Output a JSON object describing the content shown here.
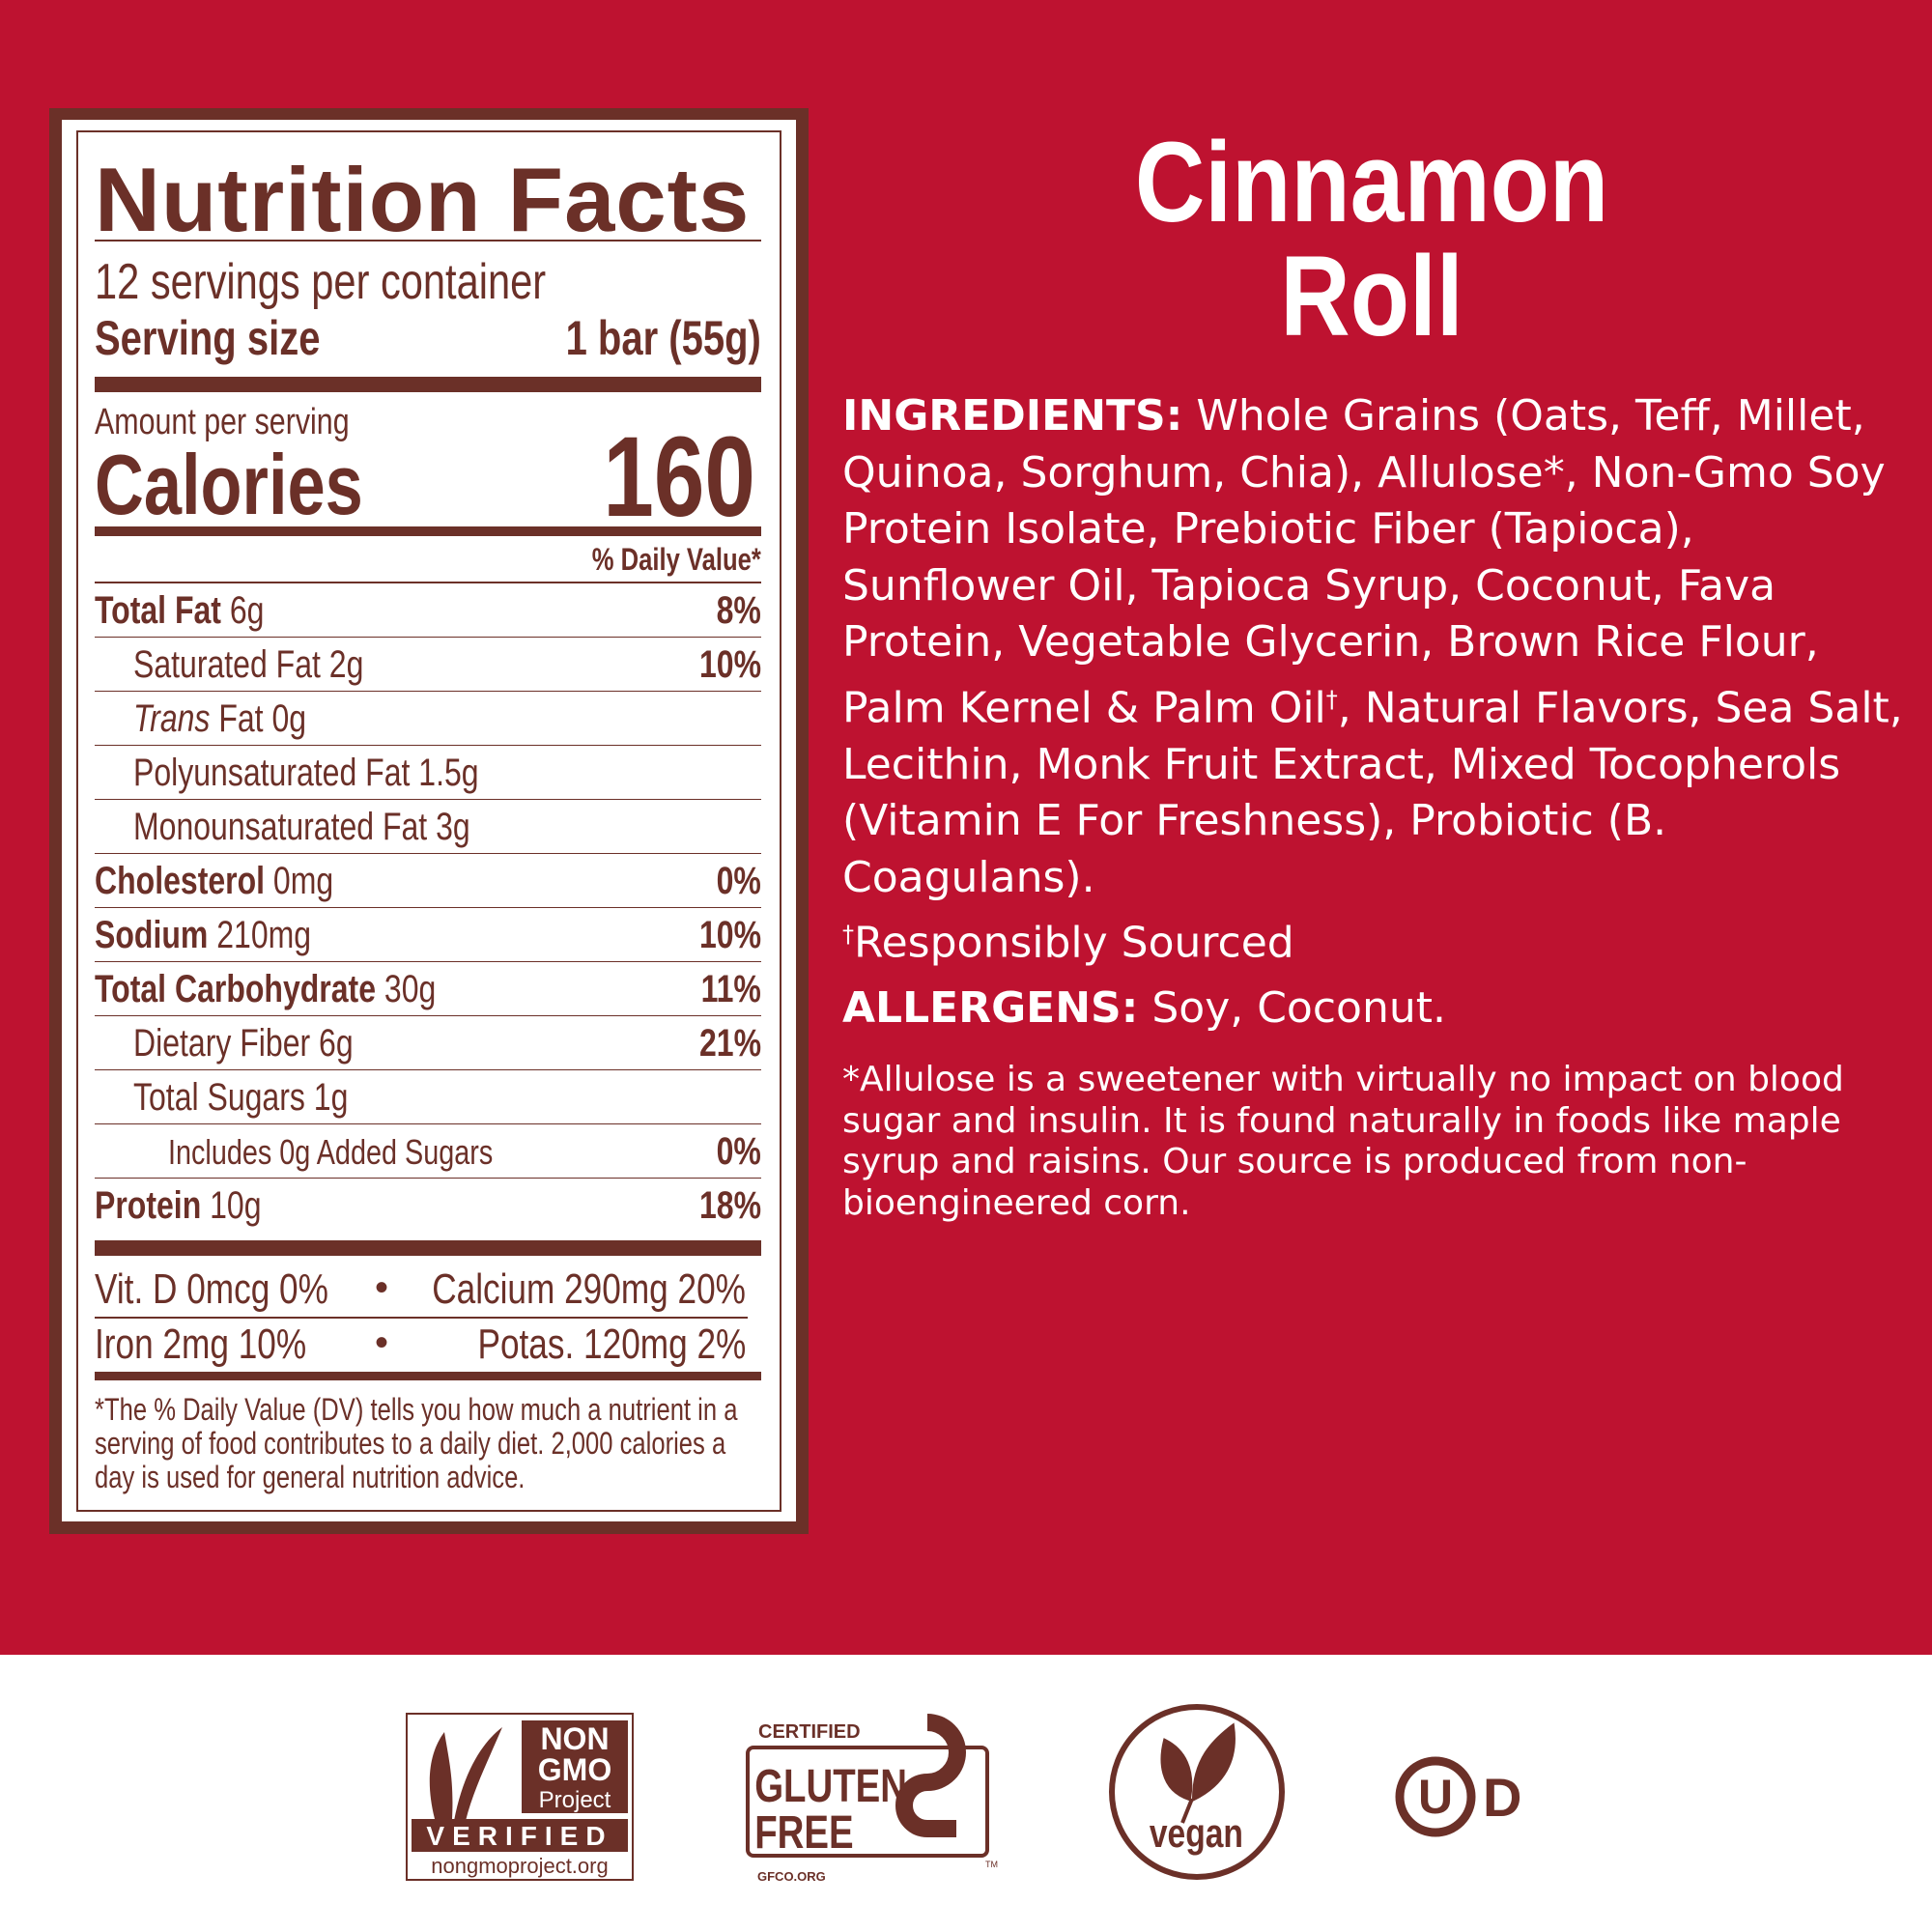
{
  "product_title": "Cinnamon Roll",
  "colors": {
    "background": "#BE1230",
    "label_brown": "#6B3028",
    "footer": "#FFFFFF"
  },
  "nutrition": {
    "heading": "Nutrition Facts",
    "servings_per_container": "12 servings per container",
    "serving_size_label": "Serving size",
    "serving_size_value": "1 bar (55g)",
    "amount_per_serving": "Amount per serving",
    "calories_label": "Calories",
    "calories_value": "160",
    "dv_header": "% Daily Value*",
    "rows": [
      {
        "name": "Total Fat",
        "amount": " 6g",
        "dv": "8%"
      },
      {
        "name": "Saturated Fat 2g",
        "amount": "",
        "dv": "10%"
      },
      {
        "name_italic": "Trans",
        "name": " Fat 0g",
        "dv": ""
      },
      {
        "name": "Polyunsaturated Fat 1.5g",
        "dv": ""
      },
      {
        "name": "Monounsaturated Fat 3g",
        "dv": ""
      },
      {
        "name": "Cholesterol",
        "amount": " 0mg",
        "dv": "0%"
      },
      {
        "name": "Sodium",
        "amount": " 210mg",
        "dv": "10%"
      },
      {
        "name": "Total Carbohydrate",
        "amount": " 30g",
        "dv": "11%"
      },
      {
        "name": "Dietary Fiber 6g",
        "dv": "21%"
      },
      {
        "name": "Total Sugars 1g",
        "dv": ""
      },
      {
        "name": "Includes 0g Added Sugars",
        "dv": "0%"
      },
      {
        "name": "Protein",
        "amount": " 10g",
        "dv": "18%"
      }
    ],
    "vitamins": {
      "vit_d": "Vit. D 0mcg 0%",
      "calcium": "Calcium 290mg 20%",
      "iron": "Iron 2mg 10%",
      "potassium": "Potas. 120mg 2%",
      "bullet": "•"
    },
    "footnote": "*The % Daily Value (DV) tells you how much a nutrient in a serving of food contributes to a daily diet. 2,000 calories a day is used for general nutrition advice."
  },
  "ingredients": {
    "label": "INGREDIENTS:",
    "text": " Whole Grains (Oats, Teff, Millet, Quinoa, Sorghum, Chia), Allulose*, Non-Gmo Soy Protein Isolate, Prebiotic Fiber (Tapioca), Sunflower Oil, Tapioca Syrup, Coconut, Fava Protein, Vegetable Glycerin, Brown Rice Flour, Palm Kernel & Palm Oil",
    "dagger": "†",
    "text2": ", Natural Flavors, Sea Salt, Lecithin, Monk Fruit Extract, Mixed Tocopherols (Vitamin E For Freshness), Probiotic (B. Coagulans).",
    "responsibly": "Responsibly Sourced"
  },
  "allergens": {
    "label": "ALLERGENS:",
    "text": " Soy, Coconut."
  },
  "allulose_note": "*Allulose is a sweetener with virtually no impact on blood sugar and insulin. It is found naturally in foods like maple syrup and raisins. Our source is produced from non-bioengineered corn.",
  "certifications": {
    "non_gmo": {
      "line1": "NON",
      "line2": "GMO",
      "line3": "Project",
      "verified": "VERIFIED",
      "url": "nongmoproject.org"
    },
    "gluten_free": {
      "certified": "CERTIFIED",
      "line1": "GLUTEN",
      "line2": "FREE",
      "tm": "TM",
      "url": "GFCO.ORG"
    },
    "vegan": {
      "text": "vegan"
    },
    "kosher": {
      "letter": "U",
      "suffix": "D"
    }
  }
}
